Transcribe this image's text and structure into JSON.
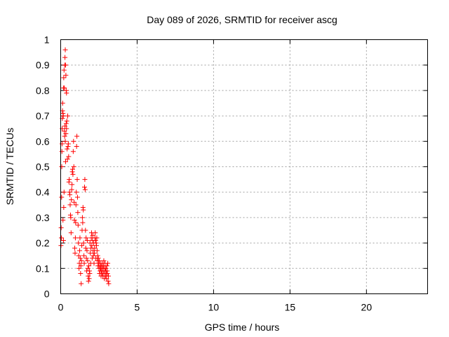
{
  "chart_data": {
    "type": "scatter",
    "title": "Day 089 of 2026, SRMTID for receiver ascg",
    "xlabel": "GPS time / hours",
    "ylabel": "SRMTID / TECUs",
    "xlim": [
      0,
      24
    ],
    "ylim": [
      0,
      1
    ],
    "xticks": [
      0,
      5,
      10,
      15,
      20
    ],
    "xtick_labels": [
      "0",
      "5",
      "10",
      "15",
      "20"
    ],
    "yticks": [
      0,
      0.1,
      0.2,
      0.3,
      0.4,
      0.5,
      0.6,
      0.7,
      0.8,
      0.9,
      1
    ],
    "ytick_labels": [
      "0",
      "0.1",
      "0.2",
      "0.3",
      "0.4",
      "0.5",
      "0.6",
      "0.7",
      "0.8",
      "0.9",
      "1"
    ],
    "grid": true,
    "marker": "+",
    "color": "#ff0000",
    "series": [
      {
        "name": "SRMTID",
        "points": [
          [
            0.02,
            0.19
          ],
          [
            0.03,
            0.26
          ],
          [
            0.05,
            0.22
          ],
          [
            0.06,
            0.38
          ],
          [
            0.07,
            0.5
          ],
          [
            0.08,
            0.56
          ],
          [
            0.09,
            0.59
          ],
          [
            0.1,
            0.65
          ],
          [
            0.11,
            0.69
          ],
          [
            0.12,
            0.72
          ],
          [
            0.13,
            0.75
          ],
          [
            0.15,
            0.71
          ],
          [
            0.17,
            0.7
          ],
          [
            0.19,
            0.81
          ],
          [
            0.2,
            0.85
          ],
          [
            0.22,
            0.88
          ],
          [
            0.24,
            0.81
          ],
          [
            0.26,
            0.9
          ],
          [
            0.28,
            0.93
          ],
          [
            0.3,
            0.96
          ],
          [
            0.32,
            0.9
          ],
          [
            0.34,
            0.86
          ],
          [
            0.36,
            0.8
          ],
          [
            0.38,
            0.79
          ],
          [
            0.15,
            0.29
          ],
          [
            0.18,
            0.21
          ],
          [
            0.2,
            0.34
          ],
          [
            0.22,
            0.4
          ],
          [
            0.24,
            0.64
          ],
          [
            0.26,
            0.62
          ],
          [
            0.28,
            0.66
          ],
          [
            0.3,
            0.6
          ],
          [
            0.32,
            0.52
          ],
          [
            0.34,
            0.63
          ],
          [
            0.36,
            0.67
          ],
          [
            0.38,
            0.65
          ],
          [
            0.4,
            0.68
          ],
          [
            0.42,
            0.57
          ],
          [
            0.44,
            0.53
          ],
          [
            0.46,
            0.7
          ],
          [
            0.48,
            0.58
          ],
          [
            0.5,
            0.59
          ],
          [
            0.52,
            0.54
          ],
          [
            0.54,
            0.44
          ],
          [
            0.56,
            0.45
          ],
          [
            0.58,
            0.4
          ],
          [
            0.6,
            0.39
          ],
          [
            0.62,
            0.35
          ],
          [
            0.64,
            0.31
          ],
          [
            0.66,
            0.3
          ],
          [
            0.68,
            0.24
          ],
          [
            0.7,
            0.37
          ],
          [
            0.72,
            0.41
          ],
          [
            0.74,
            0.43
          ],
          [
            0.76,
            0.48
          ],
          [
            0.78,
            0.49
          ],
          [
            0.8,
            0.47
          ],
          [
            0.82,
            0.56
          ],
          [
            0.84,
            0.6
          ],
          [
            0.86,
            0.5
          ],
          [
            0.88,
            0.36
          ],
          [
            0.9,
            0.29
          ],
          [
            0.92,
            0.18
          ],
          [
            0.94,
            0.16
          ],
          [
            0.96,
            0.22
          ],
          [
            0.98,
            0.28
          ],
          [
            1.0,
            0.35
          ],
          [
            1.02,
            0.4
          ],
          [
            1.04,
            0.58
          ],
          [
            1.06,
            0.62
          ],
          [
            1.08,
            0.45
          ],
          [
            1.1,
            0.38
          ],
          [
            1.12,
            0.32
          ],
          [
            1.14,
            0.27
          ],
          [
            1.16,
            0.2
          ],
          [
            1.18,
            0.15
          ],
          [
            1.2,
            0.1
          ],
          [
            1.22,
            0.12
          ],
          [
            1.24,
            0.17
          ],
          [
            1.26,
            0.22
          ],
          [
            1.28,
            0.14
          ],
          [
            1.3,
            0.08
          ],
          [
            1.32,
            0.11
          ],
          [
            1.34,
            0.04
          ],
          [
            1.36,
            0.13
          ],
          [
            1.38,
            0.19
          ],
          [
            1.4,
            0.25
          ],
          [
            1.42,
            0.3
          ],
          [
            1.44,
            0.28
          ],
          [
            1.46,
            0.34
          ],
          [
            1.48,
            0.33
          ],
          [
            1.5,
            0.2
          ],
          [
            1.52,
            0.15
          ],
          [
            1.54,
            0.12
          ],
          [
            1.56,
            0.42
          ],
          [
            1.58,
            0.45
          ],
          [
            1.6,
            0.41
          ],
          [
            1.62,
            0.25
          ],
          [
            1.64,
            0.18
          ],
          [
            1.66,
            0.22
          ],
          [
            1.68,
            0.14
          ],
          [
            1.7,
            0.09
          ],
          [
            1.72,
            0.17
          ],
          [
            1.74,
            0.21
          ],
          [
            1.76,
            0.13
          ],
          [
            1.78,
            0.1
          ],
          [
            1.8,
            0.07
          ],
          [
            1.82,
            0.05
          ],
          [
            1.84,
            0.11
          ],
          [
            1.86,
            0.06
          ],
          [
            1.88,
            0.09
          ],
          [
            1.9,
            0.08
          ],
          [
            1.92,
            0.2
          ],
          [
            1.94,
            0.16
          ],
          [
            1.96,
            0.12
          ],
          [
            1.98,
            0.18
          ],
          [
            2.0,
            0.22
          ],
          [
            2.02,
            0.24
          ],
          [
            2.04,
            0.19
          ],
          [
            2.06,
            0.14
          ],
          [
            2.08,
            0.21
          ],
          [
            2.1,
            0.23
          ],
          [
            2.12,
            0.17
          ],
          [
            2.14,
            0.15
          ],
          [
            2.16,
            0.2
          ],
          [
            2.18,
            0.12
          ],
          [
            2.2,
            0.16
          ],
          [
            2.22,
            0.18
          ],
          [
            2.24,
            0.22
          ],
          [
            2.26,
            0.24
          ],
          [
            2.28,
            0.21
          ],
          [
            2.3,
            0.14
          ],
          [
            2.32,
            0.2
          ],
          [
            2.34,
            0.19
          ],
          [
            2.36,
            0.22
          ],
          [
            2.38,
            0.17
          ],
          [
            2.4,
            0.13
          ],
          [
            2.42,
            0.15
          ],
          [
            2.44,
            0.11
          ],
          [
            2.46,
            0.14
          ],
          [
            2.48,
            0.12
          ],
          [
            2.5,
            0.1
          ],
          [
            2.52,
            0.13
          ],
          [
            2.54,
            0.08
          ],
          [
            2.56,
            0.11
          ],
          [
            2.58,
            0.09
          ],
          [
            2.6,
            0.12
          ],
          [
            2.62,
            0.1
          ],
          [
            2.64,
            0.07
          ],
          [
            2.66,
            0.09
          ],
          [
            2.68,
            0.11
          ],
          [
            2.7,
            0.08
          ],
          [
            2.72,
            0.12
          ],
          [
            2.74,
            0.1
          ],
          [
            2.76,
            0.07
          ],
          [
            2.78,
            0.09
          ],
          [
            2.8,
            0.11
          ],
          [
            2.82,
            0.13
          ],
          [
            2.84,
            0.08
          ],
          [
            2.86,
            0.06
          ],
          [
            2.88,
            0.1
          ],
          [
            2.9,
            0.12
          ],
          [
            2.92,
            0.09
          ],
          [
            2.94,
            0.07
          ],
          [
            2.96,
            0.1
          ],
          [
            2.98,
            0.08
          ],
          [
            3.0,
            0.06
          ],
          [
            3.02,
            0.11
          ],
          [
            3.04,
            0.09
          ],
          [
            3.06,
            0.08
          ],
          [
            3.08,
            0.12
          ],
          [
            3.1,
            0.05
          ],
          [
            3.12,
            0.07
          ],
          [
            3.14,
            0.04
          ]
        ]
      }
    ]
  }
}
